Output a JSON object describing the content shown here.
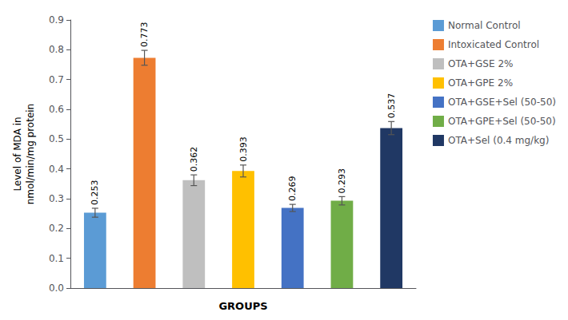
{
  "chart_data": {
    "type": "bar",
    "xlabel": "GROUPS",
    "ylabel": "Level of MDA in\nnmol/min/mg protein",
    "categories": [
      "Normal Control",
      "Intoxicated Control",
      "OTA+GSE 2%",
      "OTA+GPE 2%",
      "OTA+GSE+Sel (50-50)",
      "OTA+GPE+Sel (50-50)",
      "OTA+Sel (0.4 mg/kg)"
    ],
    "values": [
      0.253,
      0.773,
      0.362,
      0.393,
      0.269,
      0.293,
      0.537
    ],
    "errors": [
      0.015,
      0.025,
      0.018,
      0.02,
      0.012,
      0.014,
      0.022
    ],
    "colors": [
      "#5B9BD5",
      "#ED7D31",
      "#BFBFBF",
      "#FFC000",
      "#4472C4",
      "#70AD47",
      "#203864"
    ],
    "ylim": [
      0,
      0.9
    ],
    "yticks": [
      {
        "value": 0,
        "label": "0.0"
      },
      0.1,
      0.2,
      0.3,
      0.4,
      0.5,
      0.6,
      0.7,
      0.8,
      0.9
    ],
    "data_labels": true,
    "legend": "right",
    "grid": false,
    "tick_labels": "y"
  }
}
